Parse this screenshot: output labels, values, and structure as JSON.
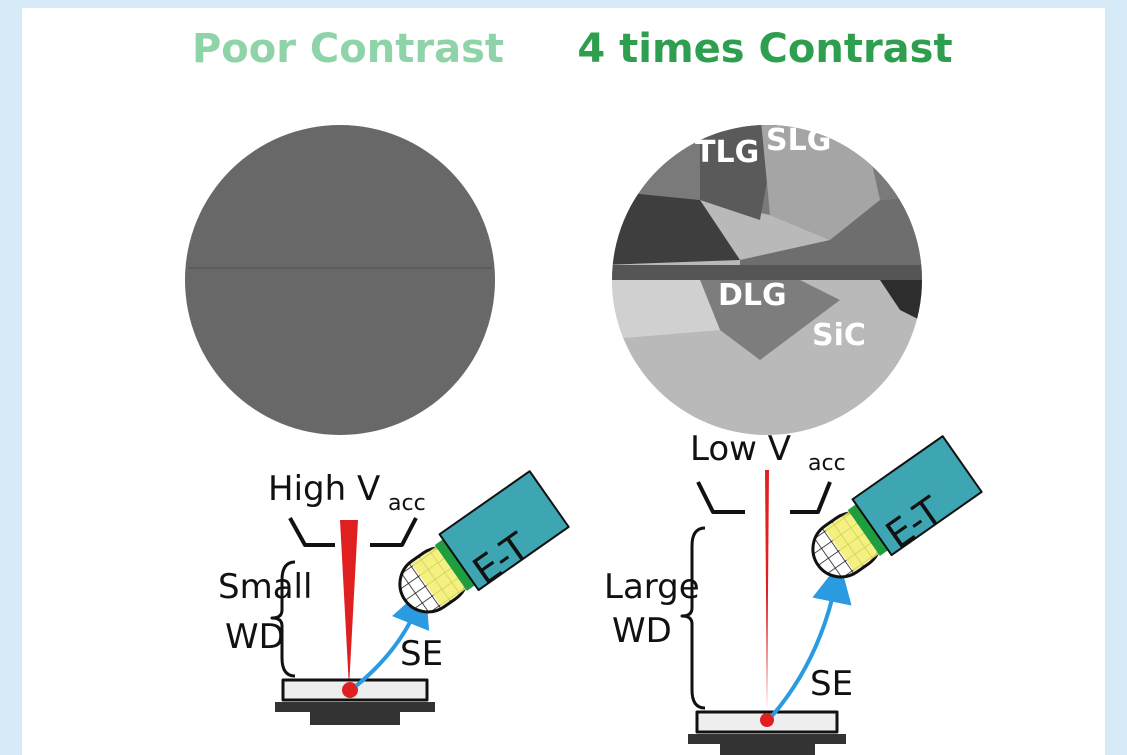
{
  "panels": [
    {
      "title": "Poor Contrast",
      "diagram": {
        "voltage": "High V",
        "voltage_sub": "acc",
        "detector": "E-T",
        "wd": [
          "Small",
          "WD"
        ],
        "signal": "SE"
      }
    },
    {
      "title": "4 times Contrast",
      "regions": [
        "TLG",
        "SLG",
        "DLG",
        "SiC"
      ],
      "diagram": {
        "voltage": "Low V",
        "voltage_sub": "acc",
        "detector": "E-T",
        "wd": [
          "Large",
          "WD"
        ],
        "signal": "SE"
      }
    }
  ]
}
